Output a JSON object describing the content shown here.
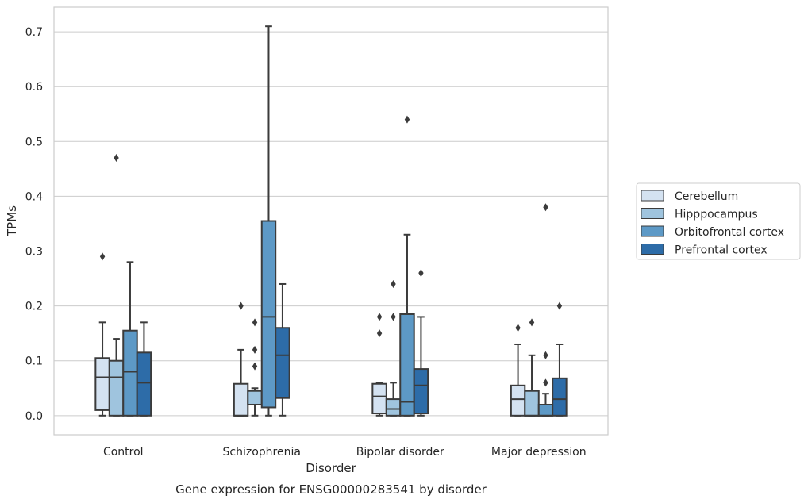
{
  "chart_data": {
    "type": "box",
    "title": "",
    "caption": "Gene expression for ENSG00000283541 by disorder",
    "xlabel": "Disorder",
    "ylabel": "TPMs",
    "ylim": [
      -0.035,
      0.745
    ],
    "yticks": [
      0.0,
      0.1,
      0.2,
      0.3,
      0.4,
      0.5,
      0.6,
      0.7
    ],
    "ytick_labels": [
      "0.0",
      "0.1",
      "0.2",
      "0.3",
      "0.4",
      "0.5",
      "0.6",
      "0.7"
    ],
    "grid": "horizontal",
    "legend_position": "right",
    "categories": [
      "Control",
      "Schizophrenia",
      "Bipolar disorder",
      "Major depression"
    ],
    "series": [
      {
        "name": "Cerebellum",
        "color": "#d4e2f1",
        "boxes": [
          {
            "min": 0.0,
            "q1": 0.01,
            "median": 0.07,
            "q3": 0.105,
            "max": 0.17,
            "outliers": [
              0.29
            ]
          },
          {
            "min": 0.0,
            "q1": 0.0,
            "median": 0.0,
            "q3": 0.058,
            "max": 0.12,
            "outliers": [
              0.2
            ]
          },
          {
            "min": 0.0,
            "q1": 0.004,
            "median": 0.035,
            "q3": 0.058,
            "max": 0.06,
            "outliers": [
              0.15,
              0.18
            ]
          },
          {
            "min": 0.0,
            "q1": 0.0,
            "median": 0.03,
            "q3": 0.055,
            "max": 0.13,
            "outliers": [
              0.16
            ]
          }
        ]
      },
      {
        "name": "Hipppocampus",
        "color": "#9fc4de",
        "boxes": [
          {
            "min": 0.0,
            "q1": 0.0,
            "median": 0.07,
            "q3": 0.1,
            "max": 0.14,
            "outliers": [
              0.47
            ]
          },
          {
            "min": 0.0,
            "q1": 0.02,
            "median": 0.02,
            "q3": 0.045,
            "max": 0.05,
            "outliers": [
              0.09,
              0.12,
              0.17
            ]
          },
          {
            "min": 0.0,
            "q1": 0.0,
            "median": 0.012,
            "q3": 0.03,
            "max": 0.06,
            "outliers": [
              0.18,
              0.24
            ]
          },
          {
            "min": 0.0,
            "q1": 0.0,
            "median": 0.0,
            "q3": 0.045,
            "max": 0.11,
            "outliers": [
              0.17
            ]
          }
        ]
      },
      {
        "name": "Orbitofrontal cortex",
        "color": "#5d99c6",
        "boxes": [
          {
            "min": 0.0,
            "q1": 0.0,
            "median": 0.08,
            "q3": 0.155,
            "max": 0.28,
            "outliers": []
          },
          {
            "min": 0.0,
            "q1": 0.015,
            "median": 0.18,
            "q3": 0.355,
            "max": 0.71,
            "outliers": []
          },
          {
            "min": 0.0,
            "q1": 0.0,
            "median": 0.025,
            "q3": 0.185,
            "max": 0.33,
            "outliers": [
              0.54
            ]
          },
          {
            "min": 0.0,
            "q1": 0.0,
            "median": 0.0,
            "q3": 0.02,
            "max": 0.04,
            "outliers": [
              0.06,
              0.11,
              0.38
            ]
          }
        ]
      },
      {
        "name": "Prefrontal cortex",
        "color": "#2d6ca8",
        "boxes": [
          {
            "min": 0.0,
            "q1": 0.0,
            "median": 0.06,
            "q3": 0.115,
            "max": 0.17,
            "outliers": []
          },
          {
            "min": 0.0,
            "q1": 0.032,
            "median": 0.11,
            "q3": 0.16,
            "max": 0.24,
            "outliers": []
          },
          {
            "min": 0.0,
            "q1": 0.004,
            "median": 0.055,
            "q3": 0.085,
            "max": 0.18,
            "outliers": [
              0.26
            ]
          },
          {
            "min": 0.0,
            "q1": 0.0,
            "median": 0.03,
            "q3": 0.068,
            "max": 0.13,
            "outliers": [
              0.2
            ]
          }
        ]
      }
    ]
  }
}
